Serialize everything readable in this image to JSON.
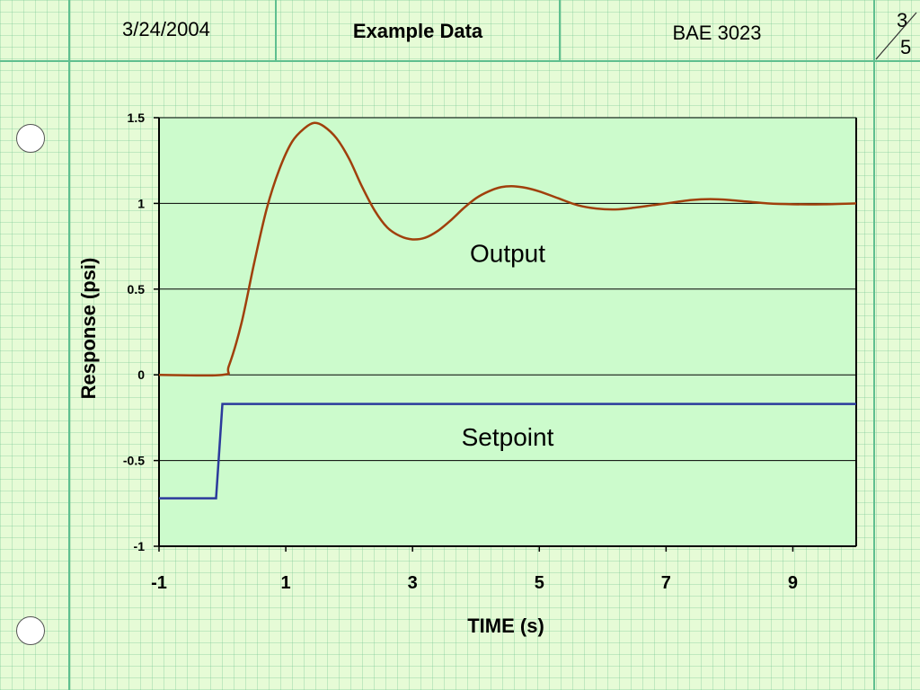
{
  "header": {
    "date": "3/24/2004",
    "title": "Example Data",
    "course": "BAE 3023",
    "page_num": "3",
    "page_total": "5"
  },
  "chart_data": {
    "type": "line",
    "title": "",
    "xlabel": "TIME (s)",
    "ylabel": "Response (psi)",
    "xlim": [
      -1,
      10
    ],
    "ylim": [
      -1,
      1.5
    ],
    "xticks": [
      -1,
      1,
      3,
      5,
      7,
      9
    ],
    "yticks": [
      -1,
      -0.5,
      0,
      0.5,
      1,
      1.5
    ],
    "ytick_labels": [
      "-1",
      "-0.5",
      "0",
      "0.5",
      "1",
      "1.5"
    ],
    "grid": "horizontal",
    "plot_bg": "#ccfbcc",
    "annotations": [
      {
        "text": "Output",
        "x": 4.5,
        "y": 0.7
      },
      {
        "text": "Setpoint",
        "x": 4.5,
        "y": -0.37
      }
    ],
    "series": [
      {
        "color": "#a0400c",
        "x": [
          -1,
          0,
          0.1,
          0.3,
          0.5,
          0.7,
          0.9,
          1.1,
          1.3,
          1.45,
          1.6,
          1.8,
          2.0,
          2.2,
          2.4,
          2.6,
          2.8,
          3.0,
          3.2,
          3.4,
          3.6,
          3.8,
          4.0,
          4.2,
          4.4,
          4.6,
          4.8,
          5.0,
          5.3,
          5.6,
          5.9,
          6.2,
          6.5,
          6.8,
          7.1,
          7.4,
          7.7,
          8.0,
          8.3,
          8.6,
          9.0,
          9.5,
          10
        ],
        "y": [
          0,
          0,
          0.05,
          0.3,
          0.65,
          0.97,
          1.2,
          1.36,
          1.44,
          1.47,
          1.45,
          1.38,
          1.26,
          1.1,
          0.96,
          0.86,
          0.81,
          0.79,
          0.8,
          0.84,
          0.9,
          0.97,
          1.03,
          1.07,
          1.095,
          1.1,
          1.09,
          1.07,
          1.03,
          0.99,
          0.97,
          0.965,
          0.975,
          0.99,
          1.005,
          1.02,
          1.025,
          1.02,
          1.01,
          1.0,
          0.995,
          0.995,
          1.0
        ]
      },
      {
        "color": "#2b3a9c",
        "x": [
          -1,
          -0.1,
          0,
          10
        ],
        "y": [
          -0.72,
          -0.72,
          -0.17,
          -0.17
        ]
      }
    ]
  }
}
